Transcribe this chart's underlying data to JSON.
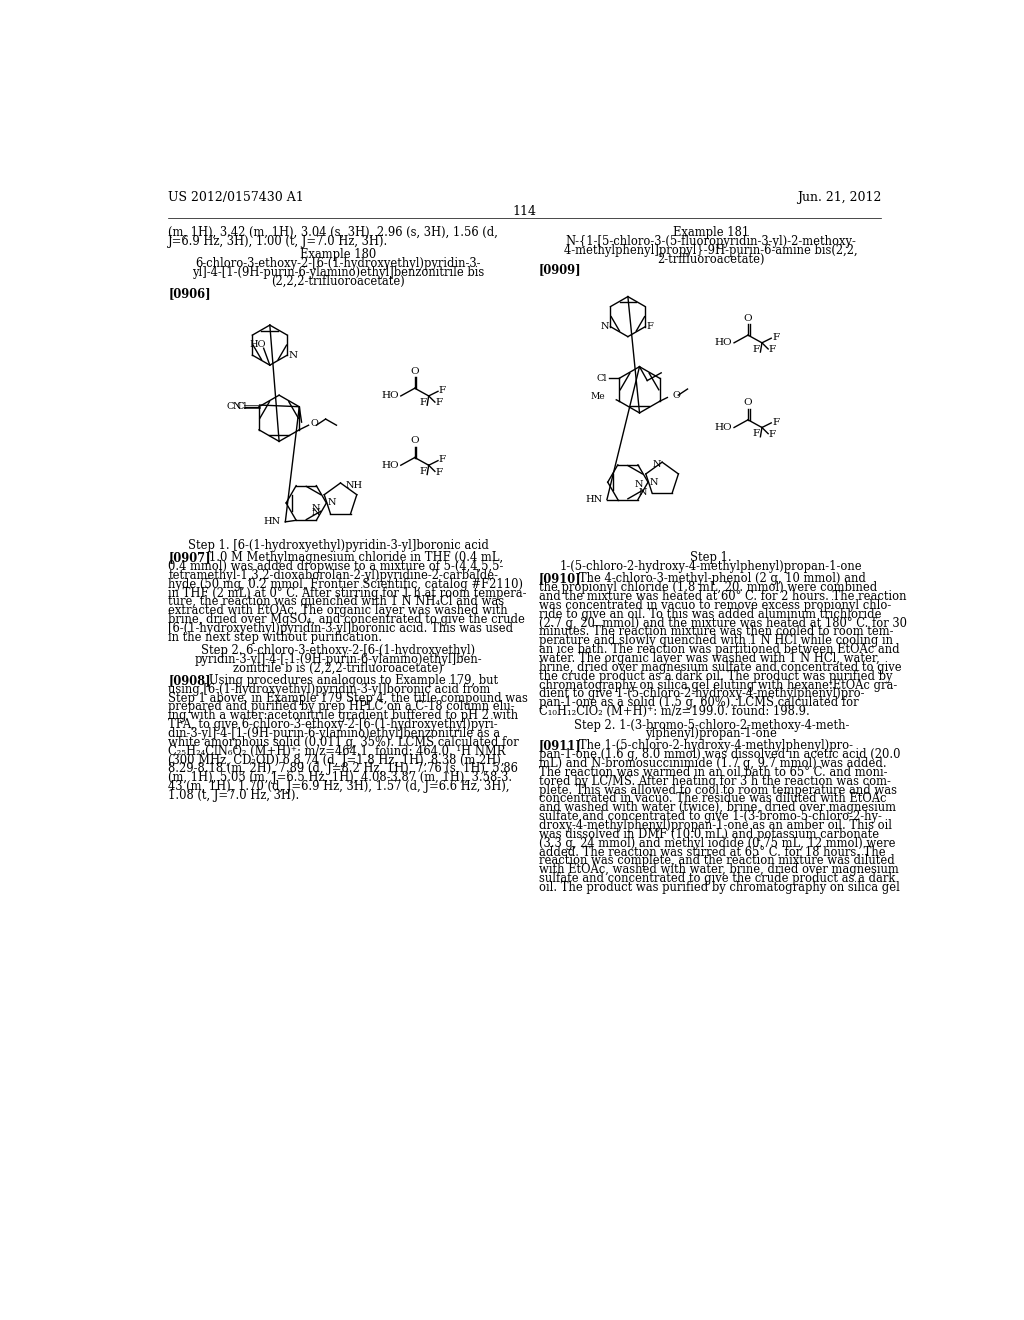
{
  "page_number": "114",
  "header_left": "US 2012/0157430 A1",
  "header_right": "Jun. 21, 2012",
  "background_color": "#ffffff",
  "left_col": {
    "cont_text_lines": [
      "(m, 1H), 3.42 (m, 1H), 3.04 (s, 3H), 2.96 (s, 3H), 1.56 (d,",
      "J=6.9 Hz, 3H), 1.00 (t, J=7.0 Hz, 3H)."
    ],
    "example_title": "Example 180",
    "compound_name_lines": [
      "6-chloro-3-ethoxy-2-[6-(1-hydroxyethyl)pyridin-3-",
      "yl]-4-[1-(9H-purin-6-ylamino)ethyl]benzonitrile bis",
      "(2,2,2-trifluoroacetate)"
    ],
    "para1_id": "[0906]",
    "step1_title": "Step 1. [6-(1-hydroxyethyl)pyridin-3-yl]boronic acid",
    "para2_id": "[0907]",
    "para2_lines": [
      "   1.0 M Methylmagnesium chloride in THF (0.4 mL,",
      "0.4 mmol) was added dropwise to a mixture of 5-(4,4,5,5-",
      "tetramethyl-1,3,2-dioxaborolan-2-yl)pyridine-2-carbalde-",
      "hyde (50 mg, 0.2 mmol, Frontier Scientific, catalog #F2110)",
      "in THF (2 mL) at 0° C. After stirring for 1 h at room tempera-",
      "ture, the reaction was quenched with 1 N NH₄Cl and was",
      "extracted with EtOAc. The organic layer was washed with",
      "brine, dried over MgSO₄, and concentrated to give the crude",
      "[6-(1-hydroxyethyl)pyridin-3-yl]boronic acid. This was used",
      "in the next step without purification."
    ],
    "step2_title_lines": [
      "Step 2. 6-chloro-3-ethoxy-2-[6-(1-hydroxyethyl)",
      "pyridin-3-yl]-4-[-1-(9H-purin-6-ylamino)ethyl]ben-",
      "zonitrile b is (2,2,2-trifluoroacetate)"
    ],
    "para3_id": "[0908]",
    "para3_lines": [
      "   Using procedures analogous to Example 179, but",
      "using [6-(1-hydroxyethyl)pyridin-3-yl]boronic acid from",
      "Step 1 above, in Example 179 Step 4, the title compound was",
      "prepared and purified by prep HPLC on a C-18 column elu-",
      "ing with a water:acetonitrile gradient buffered to pH 2 with",
      "TFA, to give 6-chloro-3-ethoxy-2-[6-(1-hydroxyethyl)pyri-",
      "din-3-yl]-4-[1-(9H-purin-6-ylamino)ethyl]benzonitrile as a",
      "white amorphous solid (0.011 g, 35%). LCMS calculated for",
      "C₂₅H₂₄ClN₆O₂ (M+H)⁺: m/z=464.1, found: 464.0. ¹H NMR",
      "(300 MHz, CD₂OD) δ 8.74 (d, J=1.8 Hz, 1H), 8.38 (m 2H),",
      "8.29-8.18 (m, 2H), 7.89 (d, J=8.2 Hz, 1H), 7.76 (s, 1H), 5.86",
      "(m, 1H), 5.05 (m, J=6.5 Hz, 1H), 4.08-3.87 (m, 1H), 3.58-3.",
      "43 (m, 1H), 1.70 (d, J=6.9 Hz, 3H), 1.57 (d, J=6.6 Hz, 3H),",
      "1.08 (t, J=7.0 Hz, 3H)."
    ]
  },
  "right_col": {
    "example_title": "Example 181",
    "compound_name_lines": [
      "N-{1-[5-chloro-3-(5-fluoropyridin-3-yl)-2-methoxy-",
      "4-methylphenyl]propyl}-9H-purin-6-amine bis(2,2,",
      "2-trifluoroacetate)"
    ],
    "para1_id": "[0909]",
    "step1_title_lines": [
      "Step 1.",
      "1-(5-chloro-2-hydroxy-4-methylphenyl)propan-1-one"
    ],
    "para2_id": "[0910]",
    "para2_lines": [
      "   The 4-chloro-3-methyl-phenol (2 g, 10 mmol) and",
      "the propionyl chloride (1.8 mL, 20. mmol) were combined",
      "and the mixture was heated at 60° C. for 2 hours. The reaction",
      "was concentrated in vacuo to remove excess propionyl chlo-",
      "ride to give an oil. To this was added aluminum trichloride",
      "(2.7 g, 20. mmol) and the mixture was heated at 180° C. for 30",
      "minutes. The reaction mixture was then cooled to room tem-",
      "perature and slowly quenched with 1 N HCl while cooling in",
      "an ice bath. The reaction was partitioned between EtOAc and",
      "water. The organic layer was washed with 1 N HCl, water,",
      "brine, dried over magnesium sulfate and concentrated to give",
      "the crude product as a dark oil. The product was purified by",
      "chromatography on silica gel eluting with hexane:EtOAc gra-",
      "dient to give 1-(5-chloro-2-hydroxy-4-methylphenyl)pro-",
      "pan-1-one as a solid (1.5 g, 60%). LCMS calculated for",
      "C₁₀H₁₂ClO₂ (M+H)⁺: m/z=199.0. found: 198.9."
    ],
    "step2_title_lines": [
      "Step 2. 1-(3-bromo-5-chloro-2-methoxy-4-meth-",
      "ylphenyl)propan-1-one"
    ],
    "para3_id": "[0911]",
    "para3_lines": [
      "   The 1-(5-chloro-2-hydroxy-4-methylphenyl)pro-",
      "pan-1-one (1.6 g, 8.0 mmol) was dissolved in acetic acid (20.0",
      "mL) and N-bromosuccinimide (1.7 g, 9.7 mmol) was added.",
      "The reaction was warmed in an oil bath to 65° C. and moni-",
      "tored by LC/MS. After heating for 3 h the reaction was com-",
      "plete. This was allowed to cool to room temperature and was",
      "concentrated in vacuo. The residue was diluted with EtOAc",
      "and washed with water (twice), brine, dried over magnesium",
      "sulfate and concentrated to give 1-(3-bromo-5-chloro-2-hy-",
      "droxy-4-methylphenyl)propan-1-one as an amber oil. This oil",
      "was dissolved in DMF (10.0 mL) and potassium carbonate",
      "(3.3 g, 24 mmol) and methyl iodide (0.75 mL, 12 mmol) were",
      "added. The reaction was stirred at 65° C. for 18 hours. The",
      "reaction was complete, and the reaction mixture was diluted",
      "with EtOAc, washed with water, brine, dried over magnesium",
      "sulfate and concentrated to give the crude product as a dark",
      "oil. The product was purified by chromatography on silica gel"
    ]
  }
}
